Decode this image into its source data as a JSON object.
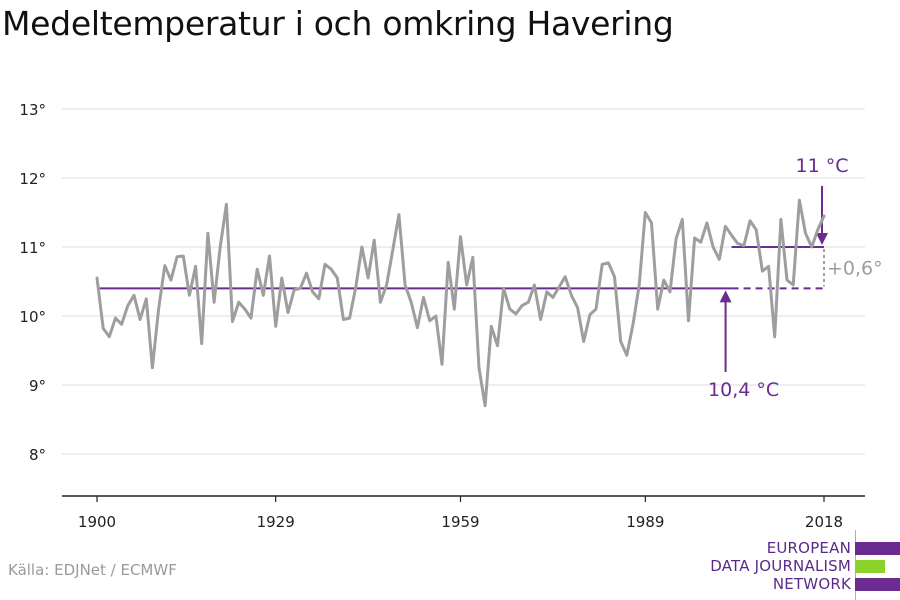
{
  "title": "Medeltemperatur i och omkring Havering",
  "source": "Källa: EDJNet / ECMWF",
  "logo": {
    "line1": "EUROPEAN",
    "line2": "DATA JOURNALISM",
    "line3": "NETWORK",
    "color_purple": "#6a2c91",
    "color_green": "#8cd12c"
  },
  "chart_data": {
    "type": "line",
    "x_ticks": [
      1900,
      1929,
      1959,
      1989,
      2018
    ],
    "y_ticks": [
      8,
      9,
      10,
      11,
      12,
      13
    ],
    "y_tick_labels": [
      "8°",
      "9°",
      "10°",
      "11°",
      "12°",
      "13°"
    ],
    "x_tick_labels": [
      "1900",
      "1929",
      "1959",
      "1989",
      "2018"
    ],
    "xlim": [
      1900,
      2018
    ],
    "ylim": [
      7.4,
      13
    ],
    "grid": true,
    "series": [
      {
        "color": "#9e9e9e",
        "x": [
          1900,
          1901,
          1902,
          1903,
          1904,
          1905,
          1906,
          1907,
          1908,
          1909,
          1910,
          1911,
          1912,
          1913,
          1914,
          1915,
          1916,
          1917,
          1918,
          1919,
          1920,
          1921,
          1922,
          1923,
          1924,
          1925,
          1926,
          1927,
          1928,
          1929,
          1930,
          1931,
          1932,
          1933,
          1934,
          1935,
          1936,
          1937,
          1938,
          1939,
          1940,
          1941,
          1942,
          1943,
          1944,
          1945,
          1946,
          1947,
          1948,
          1949,
          1950,
          1951,
          1952,
          1953,
          1954,
          1955,
          1956,
          1957,
          1958,
          1959,
          1960,
          1961,
          1962,
          1963,
          1964,
          1965,
          1966,
          1967,
          1968,
          1969,
          1970,
          1971,
          1972,
          1973,
          1974,
          1975,
          1976,
          1977,
          1978,
          1979,
          1980,
          1981,
          1982,
          1983,
          1984,
          1985,
          1986,
          1987,
          1988,
          1989,
          1990,
          1991,
          1992,
          1993,
          1994,
          1995,
          1996,
          1997,
          1998,
          1999,
          2000,
          2001,
          2002,
          2003,
          2004,
          2005,
          2006,
          2007,
          2008,
          2009,
          2010,
          2011,
          2012,
          2013,
          2014,
          2015,
          2016,
          2017,
          2018
        ],
        "y": [
          10.55,
          9.82,
          9.7,
          9.97,
          9.88,
          10.15,
          10.3,
          9.95,
          10.25,
          9.25,
          10.1,
          10.73,
          10.52,
          10.86,
          10.87,
          10.3,
          10.72,
          9.6,
          11.2,
          10.2,
          11.0,
          11.62,
          9.92,
          10.2,
          10.1,
          9.97,
          10.68,
          10.3,
          10.87,
          9.85,
          10.55,
          10.05,
          10.38,
          10.4,
          10.62,
          10.35,
          10.25,
          10.75,
          10.68,
          10.55,
          9.95,
          9.97,
          10.42,
          11.0,
          10.55,
          11.1,
          10.2,
          10.45,
          10.95,
          11.47,
          10.45,
          10.2,
          9.83,
          10.27,
          9.93,
          10.0,
          9.3,
          10.78,
          10.1,
          11.15,
          10.45,
          10.85,
          9.25,
          8.7,
          9.85,
          9.57,
          10.4,
          10.1,
          10.03,
          10.15,
          10.2,
          10.45,
          9.95,
          10.35,
          10.27,
          10.42,
          10.57,
          10.3,
          10.12,
          9.63,
          10.02,
          10.1,
          10.75,
          10.77,
          10.57,
          9.63,
          9.43,
          9.88,
          10.45,
          11.5,
          11.35,
          10.1,
          10.52,
          10.35,
          11.12,
          11.4,
          9.93,
          11.13,
          11.07,
          11.35,
          11.0,
          10.82,
          11.3,
          11.17,
          11.05,
          11.02,
          11.38,
          11.25,
          10.65,
          10.72,
          9.7,
          11.4,
          10.52,
          10.45,
          11.68,
          11.2,
          11.0,
          11.25,
          11.45
        ]
      }
    ],
    "annotations": {
      "baseline": {
        "value": 10.4,
        "label": "10,4 °C",
        "x_start": 1900,
        "x_end": 2003,
        "dash_end": 2018,
        "color": "#6a2c91"
      },
      "recent": {
        "value": 11.0,
        "label": "11 °C",
        "x_start": 2003,
        "x_end": 2018,
        "color": "#6a2c91"
      },
      "difference": {
        "label": "+0,6°",
        "color": "#9e9e9e"
      }
    }
  }
}
